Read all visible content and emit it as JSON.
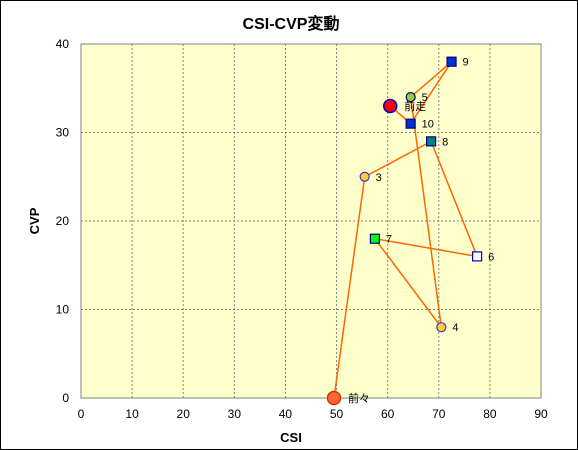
{
  "chart_data": {
    "type": "scatter",
    "title": "CSI-CVP変動",
    "xlabel": "CSI",
    "ylabel": "CVP",
    "xlim": [
      0,
      90
    ],
    "ylim": [
      0,
      40
    ],
    "x_ticks": [
      "0",
      "10",
      "20",
      "30",
      "40",
      "50",
      "60",
      "70",
      "80",
      "90"
    ],
    "y_ticks": [
      "0",
      "10",
      "20",
      "30",
      "40"
    ],
    "grid": true,
    "plot_background": "#FFFFCC",
    "line_color": "#FF6600",
    "path_order": [
      "前々",
      "3",
      "8",
      "6",
      "7",
      "4",
      "5",
      "9",
      "10",
      "前走"
    ],
    "points": [
      {
        "label": "前々",
        "x": 49.5,
        "y": 0,
        "marker": "circle",
        "size": "large",
        "fill": "#FF6633",
        "stroke": "#CC3300"
      },
      {
        "label": "3",
        "x": 55.5,
        "y": 25,
        "marker": "circle",
        "size": "small",
        "fill": "#FFCC33",
        "stroke": "#3333CC"
      },
      {
        "label": "8",
        "x": 68.5,
        "y": 29,
        "marker": "square",
        "size": "small",
        "fill": "#008080",
        "stroke": "#000080"
      },
      {
        "label": "6",
        "x": 77.5,
        "y": 16,
        "marker": "square",
        "size": "small",
        "fill": "#FFFFFF",
        "stroke": "#0000CC"
      },
      {
        "label": "7",
        "x": 57.5,
        "y": 18,
        "marker": "square",
        "size": "small",
        "fill": "#00FF00",
        "stroke": "#000080"
      },
      {
        "label": "4",
        "x": 70.5,
        "y": 8,
        "marker": "circle",
        "size": "small",
        "fill": "#FFCC33",
        "stroke": "#3333CC"
      },
      {
        "label": "5",
        "x": 64.5,
        "y": 34,
        "marker": "circle",
        "size": "small",
        "fill": "#99CC33",
        "stroke": "#000080"
      },
      {
        "label": "9",
        "x": 72.5,
        "y": 38,
        "marker": "square",
        "size": "small",
        "fill": "#0033CC",
        "stroke": "#000080"
      },
      {
        "label": "10",
        "x": 64.5,
        "y": 31,
        "marker": "square",
        "size": "small",
        "fill": "#0033CC",
        "stroke": "#000080"
      },
      {
        "label": "前走",
        "x": 60.5,
        "y": 33,
        "marker": "circle",
        "size": "large",
        "fill": "#FF0000",
        "stroke": "#0000CC"
      }
    ]
  }
}
